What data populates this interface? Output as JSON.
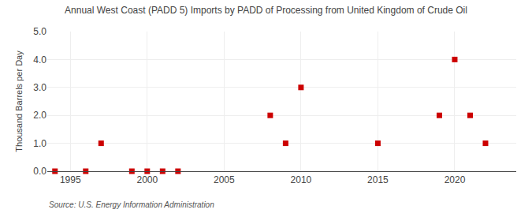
{
  "chart_data": {
    "type": "scatter",
    "title": "Annual West Coast (PADD 5) Imports by PADD of Processing from United Kingdom of Crude Oil",
    "ylabel": "Thousand Barrels per Day",
    "annotation": "Source: U.S. Energy Information Administration",
    "x": [
      1994,
      1996,
      1997,
      1999,
      2000,
      2001,
      2002,
      2008,
      2009,
      2010,
      2015,
      2019,
      2020,
      2021,
      2022
    ],
    "values": [
      0.0,
      0.0,
      1.0,
      0.0,
      0.0,
      0.0,
      0.0,
      2.0,
      1.0,
      3.0,
      1.0,
      2.0,
      4.0,
      2.0,
      1.0
    ],
    "color": "#cc0000",
    "marker": "square",
    "xlim": [
      1993.5,
      2024.0
    ],
    "ylim": [
      0.0,
      5.0
    ],
    "xticks": [
      1995,
      2000,
      2005,
      2010,
      2015,
      2020
    ],
    "yticks": [
      {
        "value": 0.0,
        "label": "0.0"
      },
      {
        "value": 1.0,
        "label": "1.0"
      },
      {
        "value": 2.0,
        "label": "2.0"
      },
      {
        "value": 3.0,
        "label": "3.0"
      },
      {
        "value": 4.0,
        "label": "4.0"
      },
      {
        "value": 5.0,
        "label": "5.0"
      }
    ],
    "grid": true
  }
}
